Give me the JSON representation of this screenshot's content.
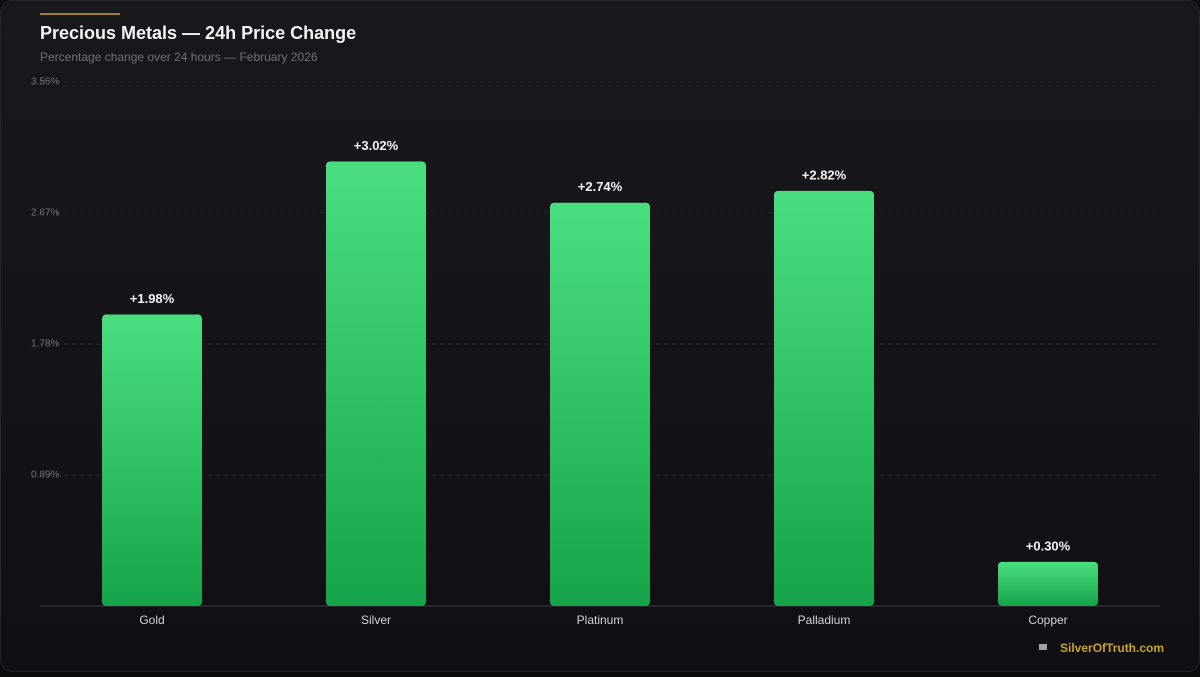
{
  "chart_data": {
    "type": "bar",
    "title": "Precious Metals — 24h Price Change",
    "subtitle": "Percentage change over 24 hours — February 2026",
    "categories": [
      "Gold",
      "Silver",
      "Platinum",
      "Palladium",
      "Copper"
    ],
    "values": [
      1.98,
      3.02,
      2.74,
      2.82,
      0.3
    ],
    "value_labels": [
      "+1.98%",
      "+3.02%",
      "+2.74%",
      "+2.82%",
      "+0.30%"
    ],
    "color": "#16a34a",
    "ylim": [
      0,
      3.56
    ],
    "yticks": [
      {
        "value": 0.89,
        "label": "0.89%"
      },
      {
        "value": 1.78,
        "label": "1.78%"
      },
      {
        "value": 2.67,
        "label": "2.67%"
      },
      {
        "value": 3.56,
        "label": "3.56%"
      }
    ],
    "grid": true,
    "source": "SilverOfTruth.com"
  }
}
